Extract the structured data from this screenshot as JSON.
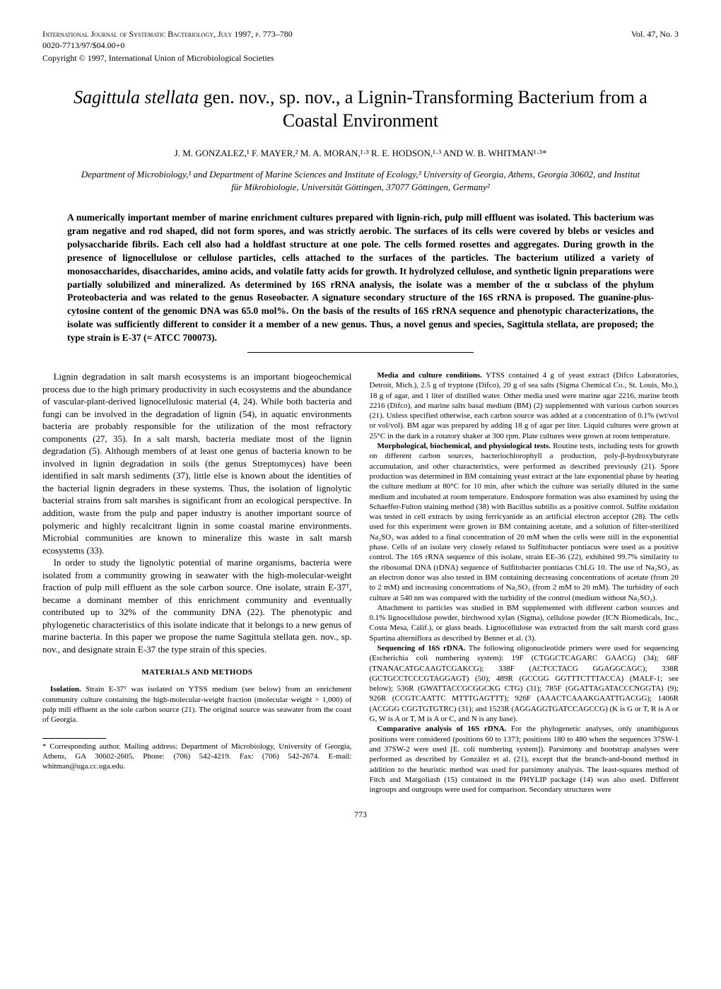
{
  "header": {
    "journal_line": "International Journal of Systematic Bacteriology, July 1997, p. 773–780",
    "issn_line": "0020-7713/97/$04.00+0",
    "copyright": "Copyright © 1997, International Union of Microbiological Societies",
    "volume": "Vol. 47, No. 3"
  },
  "title": {
    "italic_part": "Sagittula stellata",
    "rest": " gen. nov., sp. nov., a Lignin-Transforming Bacterium from a Coastal Environment"
  },
  "authors": "J. M. GONZALEZ,¹ F. MAYER,² M. A. MORAN,¹·³ R. E. HODSON,¹·³ AND W. B. WHITMAN¹·³*",
  "affiliation": "Department of Microbiology,¹ and Department of Marine Sciences and Institute of Ecology,³ University of Georgia, Athens, Georgia 30602, and Institut für Mikrobiologie, Universität Göttingen, 37077 Göttingen, Germany²",
  "abstract": "A numerically important member of marine enrichment cultures prepared with lignin-rich, pulp mill effluent was isolated. This bacterium was gram negative and rod shaped, did not form spores, and was strictly aerobic. The surfaces of its cells were covered by blebs or vesicles and polysaccharide fibrils. Each cell also had a holdfast structure at one pole. The cells formed rosettes and aggregates. During growth in the presence of lignocellulose or cellulose particles, cells attached to the surfaces of the particles. The bacterium utilized a variety of monosaccharides, disaccharides, amino acids, and volatile fatty acids for growth. It hydrolyzed cellulose, and synthetic lignin preparations were partially solubilized and mineralized. As determined by 16S rRNA analysis, the isolate was a member of the α subclass of the phylum Proteobacteria and was related to the genus Roseobacter. A signature secondary structure of the 16S rRNA is proposed. The guanine-plus-cytosine content of the genomic DNA was 65.0 mol%. On the basis of the results of 16S rRNA sequence and phenotypic characterizations, the isolate was sufficiently different to consider it a member of a new genus. Thus, a novel genus and species, Sagittula stellata, are proposed; the type strain is E-37 (= ATCC 700073).",
  "left_col": {
    "p1": "Lignin degradation in salt marsh ecosystems is an important biogeochemical process due to the high primary productivity in such ecosystems and the abundance of vascular-plant-derived lignocellulosic material (4, 24). While both bacteria and fungi can be involved in the degradation of lignin (54), in aquatic environments bacteria are probably responsible for the utilization of the most refractory components (27, 35). In a salt marsh, bacteria mediate most of the lignin degradation (5). Although members of at least one genus of bacteria known to be involved in lignin degradation in soils (the genus Streptomyces) have been identified in salt marsh sediments (37), little else is known about the identities of the bacterial lignin degraders in these systems. Thus, the isolation of lignolytic bacterial strains from salt marshes is significant from an ecological perspective. In addition, waste from the pulp and paper industry is another important source of polymeric and highly recalcitrant lignin in some coastal marine environments. Microbial communities are known to mineralize this waste in salt marsh ecosystems (33).",
    "p2": "In order to study the lignolytic potential of marine organisms, bacteria were isolated from a community growing in seawater with the high-molecular-weight fraction of pulp mill effluent as the sole carbon source. One isolate, strain E-37ᵀ, became a dominant member of this enrichment community and eventually contributed up to 32% of the community DNA (22). The phenotypic and phylogenetic characteristics of this isolate indicate that it belongs to a new genus of marine bacteria. In this paper we propose the name Sagittula stellata gen. nov., sp. nov., and designate strain E-37 the type strain of this species.",
    "methods_head": "MATERIALS AND METHODS",
    "isolation_head": "Isolation.",
    "isolation": " Strain E-37ᵀ was isolated on YTSS medium (see below) from an enrichment community culture containing the high-molecular-weight fraction (molecular weight > 1,000) of pulp mill effluent as the sole carbon source (21). The original source was seawater from the coast of Georgia.",
    "footnote": "* Corresponding author. Mailing address: Department of Microbiology, University of Georgia, Athens, GA 30602-2605. Phone: (706) 542-4219. Fax: (706) 542-2674. E-mail: whitman@uga.cc.uga.edu."
  },
  "right_col": {
    "media_head": "Media and culture conditions.",
    "media": " YTSS contained 4 g of yeast extract (Difco Laboratories, Detroit, Mich.), 2.5 g of tryptone (Difco), 20 g of sea salts (Sigma Chemical Co., St. Louis, Mo.), 18 g of agar, and 1 liter of distilled water. Other media used were marine agar 2216, marine broth 2216 (Difco), and marine salts basal medium (BM) (2) supplemented with various carbon sources (21). Unless specified otherwise, each carbon source was added at a concentration of 0.1% (wt/vol or vol/vol). BM agar was prepared by adding 18 g of agar per liter. Liquid cultures were grown at 25°C in the dark in a rotatory shaker at 300 rpm. Plate cultures were grown at room temperature.",
    "morph_head": "Morphological, biochemical, and physiological tests.",
    "morph": " Routine tests, including tests for growth on different carbon sources, bacteriochlorophyll a production, poly-β-hydroxybutyrate accumulation, and other characteristics, were performed as described previously (21). Spore production was determined in BM containing yeast extract at the late exponential phase by heating the culture medium at 80°C for 10 min, after which the culture was serially diluted in the same medium and incubated at room temperature. Endospore formation was also examined by using the Schaeffer-Fulton staining method (38) with Bacillus subtilis as a positive control. Sulfite oxidation was tested in cell extracts by using ferricyanide as an artificial electron acceptor (28). The cells used for this experiment were grown in BM containing acetate, and a solution of filter-sterilized Na₂SO₃ was added to a final concentration of 20 mM when the cells were still in the exponential phase. Cells of an isolate very closely related to Sulfitobacter pontiacus were used as a positive control. The 16S rRNA sequence of this isolate, strain EE-36 (22), exhibited 99.7% similarity to the ribosomal DNA (rDNA) sequence of Sulfitobacter pontiacus ChLG 10. The use of Na₂SO₃ as an electron donor was also tested in BM containing decreasing concentrations of acetate (from 20 to 2 mM) and increasing concentrations of Na₂SO₃ (from 2 mM to 20 mM). The turbidity of each culture at 540 nm was compared with the turbidity of the control (medium without Na₂SO₃).",
    "attach": "Attachment to particles was studied in BM supplemented with different carbon sources and 0.1% lignocellulose powder, birchwood xylan (Sigma), cellulose powder (ICN Biomedicals, Inc., Costa Mesa, Calif.), or glass beads. Lignocellulose was extracted from the salt marsh cord grass Spartina alterniflora as described by Benner et al. (3).",
    "seq_head": "Sequencing of 16S rDNA.",
    "seq": " The following oligonucleotide primers were used for sequencing (Escherichia coli numbering system): 19F (CTGGCTCAGARC GAACG) (34); 68F (TNANACATGCAAGTCGAKCG); 338F (ACTCCTACG GGAGGCAGC); 338R (GCTGCCTCCCGTAGGAGT) (50); 489R (GCCGG GGTTTCTTTACCA) (MALF-1; see below); 536R (GWATTACCGCGGCKG CTG) (31); 785F (GGATTAGATACCCNGGTA) (9); 926R (CCGTCAATTC MTTTGAGTTT); 926F (AAACTCAAAKGAATTGACGG); 1406R (ACGGG CGGTGTGTRC) (31); and 1523R (AGGAGGTGATCCAGCCG) (K is G or T, R is A or G, W is A or T, M is A or C, and N is any base).",
    "comp_head": "Comparative analysis of 16S rDNA.",
    "comp": " For the phylogenetic analyses, only unambiguous positions were considered (positions 60 to 1373; positions 180 to 480 when the sequences 37SW-1 and 37SW-2 were used [E. coli numbering system]). Parsimony and bootstrap analyses were performed as described by González et al. (21), except that the branch-and-bound method in addition to the heuristic method was used for parsimony analysis. The least-squares method of Fitch and Margoliash (15) contained in the PHYLIP package (14) was also used. Different ingroups and outgroups were used for comparison. Secondary structures were"
  },
  "page_number": "773"
}
